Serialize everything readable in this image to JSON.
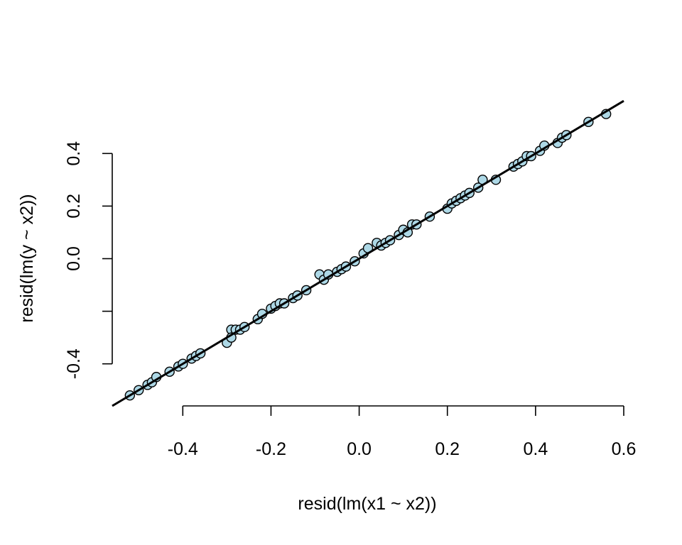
{
  "chart_data": {
    "type": "scatter",
    "xlabel": "resid(lm(x1 ~ x2))",
    "ylabel": "resid(lm(y ~ x2))",
    "x_ticks": [
      -0.4,
      -0.2,
      0.0,
      0.2,
      0.4,
      0.6
    ],
    "x_tick_labels": [
      "-0.4",
      "-0.2",
      "0.0",
      "0.2",
      "0.4",
      "0.6"
    ],
    "y_ticks": [
      -0.4,
      -0.2,
      0.0,
      0.2,
      0.4
    ],
    "y_tick_labels": [
      "-0.4",
      "",
      "0.0",
      "0.2",
      "0.4"
    ],
    "xlim": [
      -0.56,
      0.6
    ],
    "ylim": [
      -0.56,
      0.56
    ],
    "point_fill": "#add8e6",
    "point_stroke": "#000000",
    "fit_line": {
      "intercept": 0.0,
      "slope": 1.0,
      "color": "#000000"
    },
    "series": [
      {
        "x": [
          -0.52,
          -0.5,
          -0.48,
          -0.47,
          -0.46,
          -0.43,
          -0.41,
          -0.4,
          -0.38,
          -0.37,
          -0.36,
          -0.3,
          -0.29,
          -0.29,
          -0.28,
          -0.27,
          -0.26,
          -0.23,
          -0.22,
          -0.2,
          -0.19,
          -0.18,
          -0.17,
          -0.15,
          -0.14,
          -0.12,
          -0.09,
          -0.08,
          -0.07,
          -0.05,
          -0.04,
          -0.03,
          -0.01,
          0.01,
          0.02,
          0.04,
          0.05,
          0.06,
          0.07,
          0.09,
          0.1,
          0.11,
          0.12,
          0.13,
          0.16,
          0.2,
          0.21,
          0.22,
          0.23,
          0.24,
          0.25,
          0.27,
          0.28,
          0.31,
          0.35,
          0.36,
          0.37,
          0.38,
          0.39,
          0.41,
          0.42,
          0.45,
          0.46,
          0.47,
          0.52,
          0.56
        ],
        "y": [
          -0.52,
          -0.5,
          -0.48,
          -0.47,
          -0.45,
          -0.43,
          -0.41,
          -0.4,
          -0.38,
          -0.37,
          -0.36,
          -0.32,
          -0.27,
          -0.3,
          -0.27,
          -0.27,
          -0.26,
          -0.23,
          -0.21,
          -0.19,
          -0.18,
          -0.17,
          -0.17,
          -0.15,
          -0.14,
          -0.12,
          -0.06,
          -0.08,
          -0.06,
          -0.05,
          -0.04,
          -0.03,
          -0.01,
          0.02,
          0.04,
          0.06,
          0.05,
          0.06,
          0.07,
          0.09,
          0.11,
          0.1,
          0.13,
          0.13,
          0.16,
          0.19,
          0.21,
          0.22,
          0.23,
          0.24,
          0.25,
          0.27,
          0.3,
          0.3,
          0.35,
          0.36,
          0.37,
          0.39,
          0.39,
          0.41,
          0.43,
          0.44,
          0.46,
          0.47,
          0.52,
          0.55
        ]
      }
    ]
  }
}
